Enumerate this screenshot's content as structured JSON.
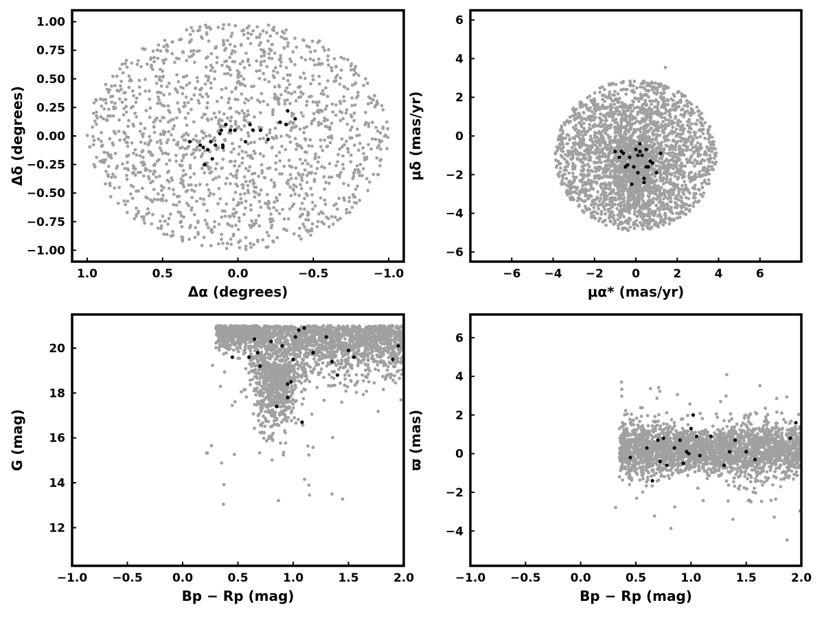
{
  "colors": {
    "background": "#808080",
    "member": "#000000",
    "frame": "#000000"
  },
  "chart_data": [
    {
      "type": "scatter",
      "panel": "top-left",
      "xlabel": "Δα (degrees)",
      "ylabel": "Δδ (degrees)",
      "xlim": [
        1.1,
        -1.1
      ],
      "ylim": [
        -1.1,
        1.1
      ],
      "x_inverted": true,
      "xticks": [
        1.0,
        0.5,
        0.0,
        -0.5,
        -1.0
      ],
      "xtick_labels": [
        "1.0",
        "0.5",
        "0.0",
        "−0.5",
        "−1.0"
      ],
      "yticks": [
        1.0,
        0.75,
        0.5,
        0.25,
        0.0,
        -0.25,
        -0.5,
        -0.75,
        -1.0
      ],
      "ytick_labels": [
        "1.00",
        "0.75",
        "0.50",
        "0.25",
        "0.00",
        "−0.25",
        "−0.50",
        "−0.75",
        "−1.00"
      ],
      "grid": false,
      "background_field": {
        "shape": "disk",
        "center": [
          0,
          0
        ],
        "radius": 1.0,
        "count": 1500,
        "color": "#a0a0a0"
      },
      "members": {
        "color": "#000000",
        "x": [
          0.32,
          0.25,
          0.22,
          0.2,
          0.18,
          0.15,
          0.12,
          0.1,
          0.08,
          0.05,
          0.02,
          -0.05,
          -0.1,
          -0.15,
          -0.2,
          -0.28,
          -0.32,
          -0.33,
          -0.38,
          0.23,
          0.17,
          0.11,
          -0.08,
          0.1
        ],
        "y": [
          -0.05,
          -0.08,
          -0.25,
          -0.12,
          -0.05,
          -0.08,
          0.02,
          -0.1,
          0.1,
          0.05,
          0.05,
          -0.05,
          0.05,
          0.05,
          -0.03,
          0.12,
          0.1,
          0.22,
          0.15,
          -0.1,
          -0.2,
          0.05,
          0.1,
          -0.08
        ]
      }
    },
    {
      "type": "scatter",
      "panel": "top-right",
      "xlabel": "μα* (mas/yr)",
      "ylabel": "μδ (mas/yr)",
      "xlim": [
        -8,
        8
      ],
      "ylim": [
        -6.5,
        6.5
      ],
      "xticks": [
        -6,
        -4,
        -2,
        0,
        2,
        4,
        6
      ],
      "xtick_labels": [
        "−6",
        "−4",
        "−2",
        "0",
        "2",
        "4",
        "6"
      ],
      "yticks": [
        -6,
        -4,
        -2,
        0,
        2,
        4,
        6
      ],
      "ytick_labels": [
        "−6",
        "−4",
        "−2",
        "0",
        "2",
        "4",
        "6"
      ],
      "grid": false,
      "background_field": {
        "shape": "disk",
        "center": [
          0,
          -1.0
        ],
        "radius": 3.9,
        "clip_y": [
          -4.9,
          6.5
        ],
        "count": 2000,
        "color": "#a0a0a0"
      },
      "members": {
        "color": "#000000",
        "x": [
          -1.0,
          -0.8,
          -0.6,
          -0.5,
          -0.3,
          -0.2,
          -0.1,
          0.0,
          0.1,
          0.2,
          0.3,
          0.4,
          0.5,
          0.6,
          0.7,
          0.8,
          1.0,
          1.2,
          -0.7,
          -0.4,
          0.2,
          0.4,
          0.1,
          0.5
        ],
        "y": [
          -0.8,
          -1.1,
          -0.9,
          -1.6,
          -1.1,
          -2.5,
          -1.6,
          -0.7,
          -1.9,
          -0.4,
          -1.0,
          -2.2,
          -0.7,
          -1.6,
          -1.3,
          -1.4,
          -1.9,
          -0.9,
          -0.8,
          -1.5,
          -0.8,
          -2.4,
          -1.0,
          -1.6
        ]
      }
    },
    {
      "type": "scatter",
      "panel": "bottom-left",
      "xlabel": "Bp − Rp (mag)",
      "ylabel": "G (mag)",
      "xlim": [
        -1.0,
        2.0
      ],
      "ylim": [
        10.3,
        21.5
      ],
      "xticks": [
        -1.0,
        -0.5,
        0.0,
        0.5,
        1.0,
        1.5,
        2.0
      ],
      "xtick_labels": [
        "−1.0",
        "−0.5",
        "0.0",
        "0.5",
        "1.0",
        "1.5",
        "2.0"
      ],
      "yticks": [
        12,
        14,
        16,
        18,
        20
      ],
      "ytick_labels": [
        "12",
        "14",
        "16",
        "18",
        "20"
      ],
      "grid": false,
      "background_field": {
        "shape": "color-magnitude",
        "count": 2200,
        "color": "#a0a0a0"
      },
      "members": {
        "color": "#000000",
        "x": [
          0.45,
          0.6,
          0.65,
          0.7,
          0.68,
          0.8,
          0.85,
          0.9,
          0.95,
          0.98,
          1.0,
          1.02,
          1.05,
          1.08,
          1.1,
          1.18,
          1.3,
          1.35,
          1.4,
          1.5,
          1.55,
          1.95,
          1.9,
          0.95
        ],
        "y": [
          19.6,
          19.6,
          20.4,
          19.2,
          19.8,
          20.3,
          17.4,
          20.1,
          18.4,
          18.5,
          19.5,
          20.5,
          20.8,
          16.7,
          20.9,
          19.8,
          20.5,
          19.4,
          18.8,
          19.9,
          19.6,
          20.1,
          19.5,
          17.8
        ]
      }
    },
    {
      "type": "scatter",
      "panel": "bottom-right",
      "xlabel": "Bp − Rp (mag)",
      "ylabel": "ϖ (mas)",
      "xlim": [
        -1.0,
        2.0
      ],
      "ylim": [
        -5.8,
        7.2
      ],
      "xticks": [
        -1.0,
        -0.5,
        0.0,
        0.5,
        1.0,
        1.5,
        2.0
      ],
      "xtick_labels": [
        "−1.0",
        "−0.5",
        "0.0",
        "0.5",
        "1.0",
        "1.5",
        "2.0"
      ],
      "yticks": [
        -4,
        -2,
        0,
        2,
        4,
        6
      ],
      "ytick_labels": [
        "−4",
        "−2",
        "0",
        "2",
        "4",
        "6"
      ],
      "grid": false,
      "background_field": {
        "shape": "parallax-band",
        "count": 2500,
        "color": "#a0a0a0"
      },
      "members": {
        "color": "#000000",
        "x": [
          0.45,
          0.6,
          0.65,
          0.7,
          0.75,
          0.78,
          0.85,
          0.9,
          0.93,
          0.96,
          0.98,
          1.0,
          1.02,
          1.05,
          1.08,
          1.18,
          1.3,
          1.35,
          1.4,
          1.5,
          1.58,
          1.9,
          1.95,
          0.72
        ],
        "y": [
          -0.2,
          0.3,
          -1.4,
          0.7,
          0.8,
          -0.6,
          0.3,
          0.7,
          -0.5,
          0.1,
          0.0,
          1.3,
          2.0,
          0.9,
          -0.1,
          0.9,
          -0.6,
          0.1,
          0.7,
          0.1,
          -0.3,
          0.8,
          1.6,
          -0.4
        ]
      }
    }
  ]
}
